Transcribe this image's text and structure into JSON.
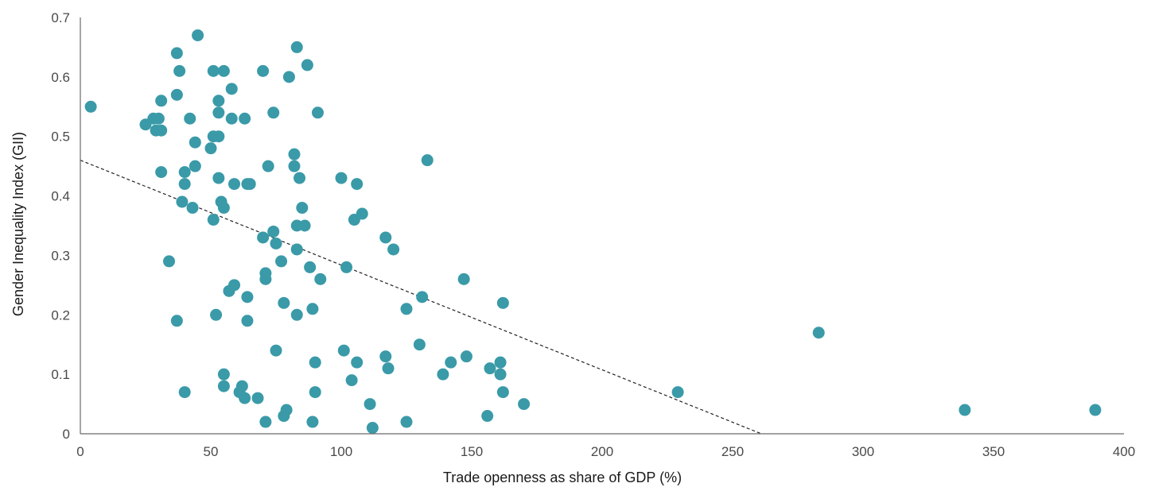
{
  "colors": {
    "point": "#3a9aa8",
    "axis": "#6b6b6b",
    "trend": "#222222"
  },
  "chart_data": {
    "type": "scatter",
    "title": "",
    "xlabel": "Trade openness as share of GDP (%)",
    "ylabel": "Gender Inequality Index (GII)",
    "xlim": [
      0,
      400
    ],
    "ylim": [
      0,
      0.7
    ],
    "xticks": [
      "0",
      "50",
      "100",
      "150",
      "200",
      "250",
      "300",
      "350",
      "400"
    ],
    "yticks": [
      "0",
      "0.1",
      "0.2",
      "0.3",
      "0.4",
      "0.5",
      "0.6",
      "0.7"
    ],
    "grid": false,
    "trendline": {
      "style": "dashed",
      "from": [
        0,
        0.46
      ],
      "to": [
        261,
        0.0
      ]
    },
    "points": [
      [
        4,
        0.55
      ],
      [
        25,
        0.52
      ],
      [
        28,
        0.53
      ],
      [
        29,
        0.51
      ],
      [
        30,
        0.53
      ],
      [
        31,
        0.51
      ],
      [
        31,
        0.44
      ],
      [
        31,
        0.56
      ],
      [
        34,
        0.29
      ],
      [
        37,
        0.64
      ],
      [
        37,
        0.57
      ],
      [
        38,
        0.61
      ],
      [
        37,
        0.19
      ],
      [
        39,
        0.39
      ],
      [
        40,
        0.44
      ],
      [
        40,
        0.42
      ],
      [
        40,
        0.07
      ],
      [
        42,
        0.53
      ],
      [
        43,
        0.38
      ],
      [
        44,
        0.49
      ],
      [
        44,
        0.45
      ],
      [
        45,
        0.67
      ],
      [
        50,
        0.48
      ],
      [
        51,
        0.5
      ],
      [
        51,
        0.61
      ],
      [
        51,
        0.36
      ],
      [
        52,
        0.2
      ],
      [
        53,
        0.56
      ],
      [
        53,
        0.54
      ],
      [
        53,
        0.43
      ],
      [
        53,
        0.5
      ],
      [
        54,
        0.39
      ],
      [
        55,
        0.61
      ],
      [
        55,
        0.38
      ],
      [
        55,
        0.1
      ],
      [
        55,
        0.08
      ],
      [
        57,
        0.24
      ],
      [
        58,
        0.58
      ],
      [
        58,
        0.53
      ],
      [
        59,
        0.42
      ],
      [
        59,
        0.25
      ],
      [
        61,
        0.07
      ],
      [
        62,
        0.08
      ],
      [
        63,
        0.53
      ],
      [
        63,
        0.06
      ],
      [
        64,
        0.42
      ],
      [
        64,
        0.23
      ],
      [
        65,
        0.42
      ],
      [
        64,
        0.19
      ],
      [
        68,
        0.06
      ],
      [
        70,
        0.61
      ],
      [
        70,
        0.33
      ],
      [
        71,
        0.26
      ],
      [
        71,
        0.27
      ],
      [
        71,
        0.02
      ],
      [
        72,
        0.45
      ],
      [
        74,
        0.54
      ],
      [
        74,
        0.34
      ],
      [
        75,
        0.32
      ],
      [
        75,
        0.14
      ],
      [
        77,
        0.29
      ],
      [
        78,
        0.22
      ],
      [
        78,
        0.03
      ],
      [
        79,
        0.04
      ],
      [
        80,
        0.6
      ],
      [
        82,
        0.45
      ],
      [
        82,
        0.47
      ],
      [
        83,
        0.65
      ],
      [
        83,
        0.35
      ],
      [
        83,
        0.31
      ],
      [
        83,
        0.2
      ],
      [
        84,
        0.43
      ],
      [
        85,
        0.38
      ],
      [
        86,
        0.35
      ],
      [
        87,
        0.62
      ],
      [
        88,
        0.28
      ],
      [
        89,
        0.21
      ],
      [
        89,
        0.02
      ],
      [
        90,
        0.12
      ],
      [
        90,
        0.07
      ],
      [
        91,
        0.54
      ],
      [
        92,
        0.26
      ],
      [
        100,
        0.43
      ],
      [
        101,
        0.14
      ],
      [
        102,
        0.28
      ],
      [
        104,
        0.09
      ],
      [
        105,
        0.36
      ],
      [
        106,
        0.42
      ],
      [
        106,
        0.12
      ],
      [
        108,
        0.37
      ],
      [
        111,
        0.05
      ],
      [
        112,
        0.01
      ],
      [
        117,
        0.33
      ],
      [
        117,
        0.13
      ],
      [
        118,
        0.11
      ],
      [
        120,
        0.31
      ],
      [
        125,
        0.21
      ],
      [
        125,
        0.02
      ],
      [
        130,
        0.15
      ],
      [
        131,
        0.23
      ],
      [
        133,
        0.46
      ],
      [
        139,
        0.1
      ],
      [
        142,
        0.12
      ],
      [
        147,
        0.26
      ],
      [
        148,
        0.13
      ],
      [
        156,
        0.03
      ],
      [
        157,
        0.11
      ],
      [
        161,
        0.12
      ],
      [
        161,
        0.1
      ],
      [
        162,
        0.22
      ],
      [
        162,
        0.07
      ],
      [
        170,
        0.05
      ],
      [
        229,
        0.07
      ],
      [
        283,
        0.17
      ],
      [
        339,
        0.04
      ],
      [
        389,
        0.04
      ]
    ]
  }
}
